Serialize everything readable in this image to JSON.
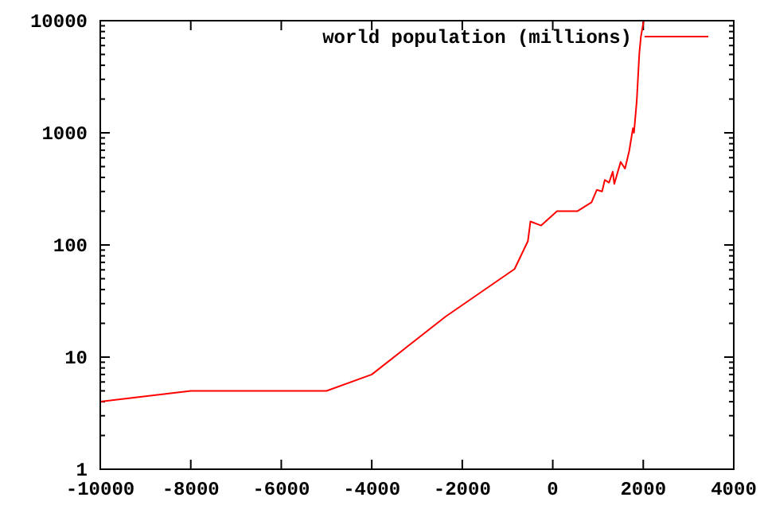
{
  "chart_data": {
    "type": "line",
    "log": "y",
    "xlim": [
      -10000,
      4000
    ],
    "xticks": [
      -10000,
      -8000,
      -6000,
      -4000,
      -2000,
      0,
      2000,
      4000
    ],
    "ylim": [
      1,
      10000
    ],
    "yticks": [
      1,
      10,
      100,
      1000,
      10000
    ],
    "legend": "top right",
    "grid": false,
    "marker": "none",
    "line_style": "solid",
    "series": [
      {
        "name": "world population (millions)",
        "color": "#ff0000",
        "x": [
          -10000,
          -8000,
          -5000,
          -4000,
          -2367,
          -844,
          -550,
          -493,
          -257,
          95,
          541,
          857,
          974,
          1090,
          1150,
          1244,
          1326,
          1360,
          1500,
          1597,
          1690,
          1772,
          1795,
          1855,
          1913,
          1948,
          2010
        ],
        "values": [
          4,
          5,
          5,
          7,
          23,
          61,
          108,
          162,
          149,
          200,
          200,
          240,
          310,
          300,
          380,
          360,
          450,
          350,
          550,
          480,
          690,
          1100,
          1000,
          1900,
          5100,
          7200,
          10000
        ]
      }
    ]
  }
}
